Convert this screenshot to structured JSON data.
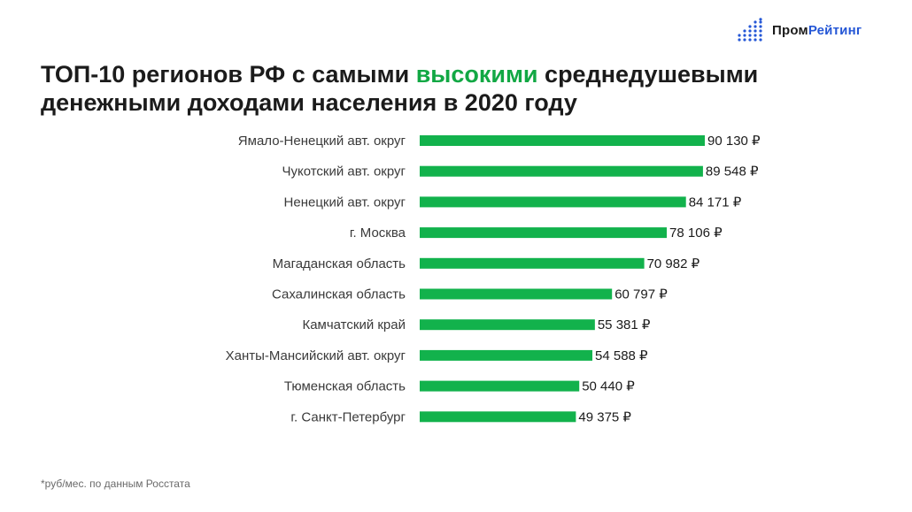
{
  "brand": {
    "name_part1": "Пром",
    "name_part2": "Рейтинг",
    "accent": "#2557d6"
  },
  "title": {
    "before": "ТОП-10 регионов РФ с самыми ",
    "highlight": "высокими",
    "after": " среднедушевыми денежными доходами населения в 2020 году",
    "highlight_color": "#12a844"
  },
  "footnote": "*руб/мес. по данным Росстата",
  "chart_data": {
    "type": "bar",
    "orientation": "horizontal",
    "bar_color": "#12b24c",
    "xlim": [
      0,
      90130
    ],
    "grid": false,
    "legend": "none",
    "categories": [
      "Ямало-Ненецкий авт. округ",
      "Чукотский авт. округ",
      "Ненецкий авт. округ",
      "г. Москва",
      "Магаданская область",
      "Сахалинская область",
      "Камчатский край",
      "Ханты-Мансийский авт. округ",
      "Тюменская область",
      "г. Санкт-Петербург"
    ],
    "values": [
      90130,
      89548,
      84171,
      78106,
      70982,
      60797,
      55381,
      54588,
      50440,
      49375
    ],
    "value_labels": [
      "90 130 ₽",
      "89 548 ₽",
      "84 171 ₽",
      "78 106 ₽",
      "70 982 ₽",
      "60 797 ₽",
      "55 381 ₽",
      "54 588 ₽",
      "50 440 ₽",
      "49 375 ₽"
    ]
  }
}
